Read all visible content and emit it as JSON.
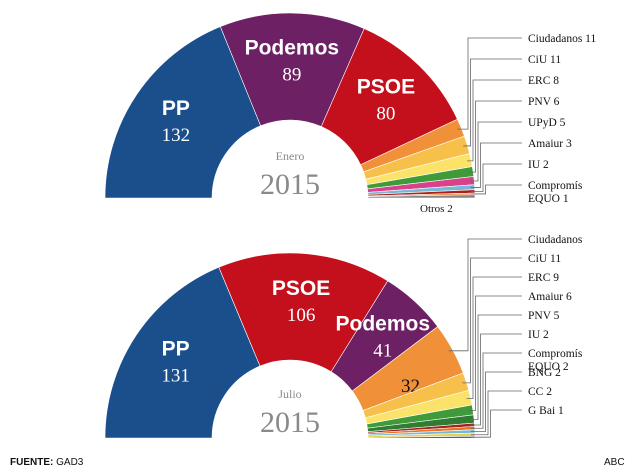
{
  "source_label": "FUENTE:",
  "source_value": "GAD3",
  "publisher": "ABC",
  "chart_data": [
    {
      "type": "pie",
      "subtype": "parliament-semicircle",
      "title_month": "Enero",
      "title_year": "2015",
      "slices": [
        {
          "name": "PP",
          "seats": 132,
          "color": "#1a4f8b",
          "label": "PP",
          "value_label": "132",
          "label_color": "#ffffff"
        },
        {
          "name": "Podemos",
          "seats": 89,
          "color": "#6d2063",
          "label": "Podemos",
          "value_label": "89",
          "label_color": "#ffffff"
        },
        {
          "name": "PSOE",
          "seats": 80,
          "color": "#c4101d",
          "label": "PSOE",
          "value_label": "80",
          "label_color": "#ffffff"
        },
        {
          "name": "Ciudadanos",
          "seats": 11,
          "color": "#f0913a",
          "label": "Ciudadanos 11"
        },
        {
          "name": "CiU",
          "seats": 11,
          "color": "#f7c04a",
          "label": "CiU 11"
        },
        {
          "name": "ERC",
          "seats": 8,
          "color": "#fbe36a",
          "label": "ERC 8"
        },
        {
          "name": "PNV",
          "seats": 6,
          "color": "#3f9a3a",
          "label": "PNV 6"
        },
        {
          "name": "UPyD",
          "seats": 5,
          "color": "#d8428d",
          "label": "UPyD 5"
        },
        {
          "name": "Amaiur",
          "seats": 3,
          "color": "#78b7d7",
          "label": "Amaiur 3"
        },
        {
          "name": "IU",
          "seats": 2,
          "color": "#a81f1c",
          "label": "IU 2"
        },
        {
          "name": "Compromís EQUO",
          "seats": 1,
          "color": "#e57321",
          "label": "Compromís",
          "label2": "EQUO 1"
        },
        {
          "name": "Otros",
          "seats": 2,
          "color": "#888888",
          "label": "Otros 2"
        }
      ]
    },
    {
      "type": "pie",
      "subtype": "parliament-semicircle",
      "title_month": "Julio",
      "title_year": "2015",
      "slices": [
        {
          "name": "PP",
          "seats": 131,
          "color": "#1a4f8b",
          "label": "PP",
          "value_label": "131",
          "label_color": "#ffffff"
        },
        {
          "name": "PSOE",
          "seats": 106,
          "color": "#c4101d",
          "label": "PSOE",
          "value_label": "106",
          "label_color": "#ffffff"
        },
        {
          "name": "Podemos",
          "seats": 41,
          "color": "#6d2063",
          "label": "Podemos",
          "value_label": "41",
          "label_color": "#ffffff"
        },
        {
          "name": "Ciudadanos",
          "seats": 32,
          "color": "#f0913a",
          "label": "Ciudadanos",
          "value_label": "32",
          "label_color": "#111111"
        },
        {
          "name": "CiU",
          "seats": 11,
          "color": "#f7c04a",
          "label": "CiU 11"
        },
        {
          "name": "ERC",
          "seats": 9,
          "color": "#fbe36a",
          "label": "ERC 9"
        },
        {
          "name": "Amaiur",
          "seats": 6,
          "color": "#3f9a3a",
          "label": "Amaiur 6"
        },
        {
          "name": "PNV",
          "seats": 5,
          "color": "#2f7d32",
          "label": "PNV 5"
        },
        {
          "name": "IU",
          "seats": 2,
          "color": "#a81f1c",
          "label": "IU 2"
        },
        {
          "name": "Compromís EQUO",
          "seats": 2,
          "color": "#e57321",
          "label": "Compromís",
          "label2": "EQUO 2"
        },
        {
          "name": "BNG",
          "seats": 2,
          "color": "#78b7d7",
          "label": "BNG 2"
        },
        {
          "name": "CC",
          "seats": 2,
          "color": "#e3d24a",
          "label": "CC 2"
        },
        {
          "name": "G Bai",
          "seats": 1,
          "color": "#1a2f5a",
          "label": "G Bai 1"
        }
      ]
    }
  ]
}
